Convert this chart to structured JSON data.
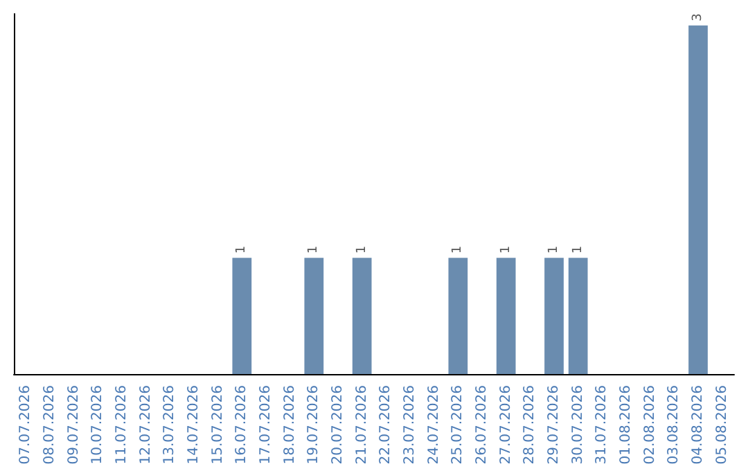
{
  "chart_data": {
    "type": "bar",
    "categories": [
      "07.07.2026",
      "08.07.2026",
      "09.07.2026",
      "10.07.2026",
      "11.07.2026",
      "12.07.2026",
      "13.07.2026",
      "14.07.2026",
      "15.07.2026",
      "16.07.2026",
      "17.07.2026",
      "18.07.2026",
      "19.07.2026",
      "20.07.2026",
      "21.07.2026",
      "22.07.2026",
      "23.07.2026",
      "24.07.2026",
      "25.07.2026",
      "26.07.2026",
      "27.07.2026",
      "28.07.2026",
      "29.07.2026",
      "30.07.2026",
      "31.07.2026",
      "01.08.2026",
      "02.08.2026",
      "03.08.2026",
      "04.08.2026",
      "05.08.2026"
    ],
    "values": [
      0,
      0,
      0,
      0,
      0,
      0,
      0,
      0,
      0,
      1,
      0,
      0,
      1,
      0,
      1,
      0,
      0,
      0,
      1,
      0,
      1,
      0,
      1,
      1,
      0,
      0,
      0,
      0,
      3,
      0
    ],
    "value_labels": [
      null,
      null,
      null,
      null,
      null,
      null,
      null,
      null,
      null,
      "1",
      null,
      null,
      "1",
      null,
      "1",
      null,
      null,
      null,
      "1",
      null,
      "1",
      null,
      "1",
      "1",
      null,
      null,
      null,
      null,
      "3",
      null
    ],
    "color": "#6a8caf",
    "ylim": [
      0,
      3.1
    ],
    "tick_labels": "x",
    "grid": false
  }
}
